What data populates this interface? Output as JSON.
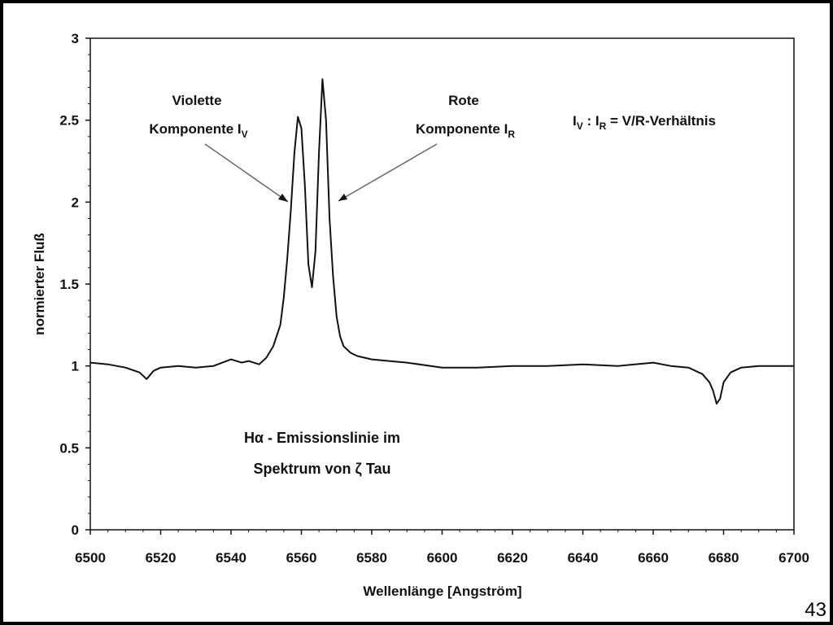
{
  "slide": {
    "page_number": "43"
  },
  "chart_data": {
    "type": "line",
    "xlabel": "Wellenlänge [Angström]",
    "ylabel": "normierter Fluß",
    "xlim": [
      6500,
      6700
    ],
    "ylim": [
      0,
      3
    ],
    "x_ticks": [
      "6500",
      "6520",
      "6540",
      "6560",
      "6580",
      "6600",
      "6620",
      "6640",
      "6660",
      "6680",
      "6700"
    ],
    "y_ticks": [
      "0",
      "0.5",
      "1",
      "1.5",
      "2",
      "2.5",
      "3"
    ],
    "grid": false,
    "series": [
      {
        "x": [
          6500,
          6505,
          6510,
          6514,
          6516,
          6518,
          6520,
          6525,
          6530,
          6535,
          6540,
          6543,
          6545,
          6548,
          6550,
          6552,
          6554,
          6555,
          6556,
          6557,
          6558,
          6559,
          6560,
          6561,
          6562,
          6563,
          6564,
          6565,
          6566,
          6567,
          6568,
          6569,
          6570,
          6571,
          6572,
          6574,
          6576,
          6580,
          6585,
          6590,
          6600,
          6610,
          6620,
          6630,
          6640,
          6650,
          6660,
          6665,
          6670,
          6674,
          6676,
          6677,
          6678,
          6679,
          6680,
          6682,
          6685,
          6690,
          6700
        ],
        "y": [
          1.02,
          1.01,
          0.99,
          0.96,
          0.92,
          0.97,
          0.99,
          1.0,
          0.99,
          1.0,
          1.04,
          1.02,
          1.03,
          1.01,
          1.05,
          1.12,
          1.25,
          1.42,
          1.66,
          1.95,
          2.3,
          2.52,
          2.45,
          2.1,
          1.62,
          1.48,
          1.7,
          2.3,
          2.75,
          2.5,
          1.9,
          1.55,
          1.3,
          1.18,
          1.12,
          1.08,
          1.06,
          1.04,
          1.03,
          1.02,
          0.99,
          0.99,
          1.0,
          1.0,
          1.01,
          1.0,
          1.02,
          1.0,
          0.99,
          0.95,
          0.9,
          0.85,
          0.77,
          0.8,
          0.9,
          0.96,
          0.99,
          1.0,
          1.0
        ]
      }
    ],
    "annotations": [
      {
        "lines": [
          "Violette",
          "Komponente I"
        ],
        "sub": "V"
      },
      {
        "lines": [
          "Rote",
          "Komponente I"
        ],
        "sub": "R"
      },
      {
        "ratio_i1": "I",
        "ratio_sub1": "V",
        "ratio_mid": " : I",
        "ratio_sub2": "R",
        "ratio_rest": " = V/R-Verhältnis"
      },
      {
        "lines": [
          "Hα - Emissionslinie im",
          "Spektrum von ζ Tau"
        ]
      }
    ]
  }
}
